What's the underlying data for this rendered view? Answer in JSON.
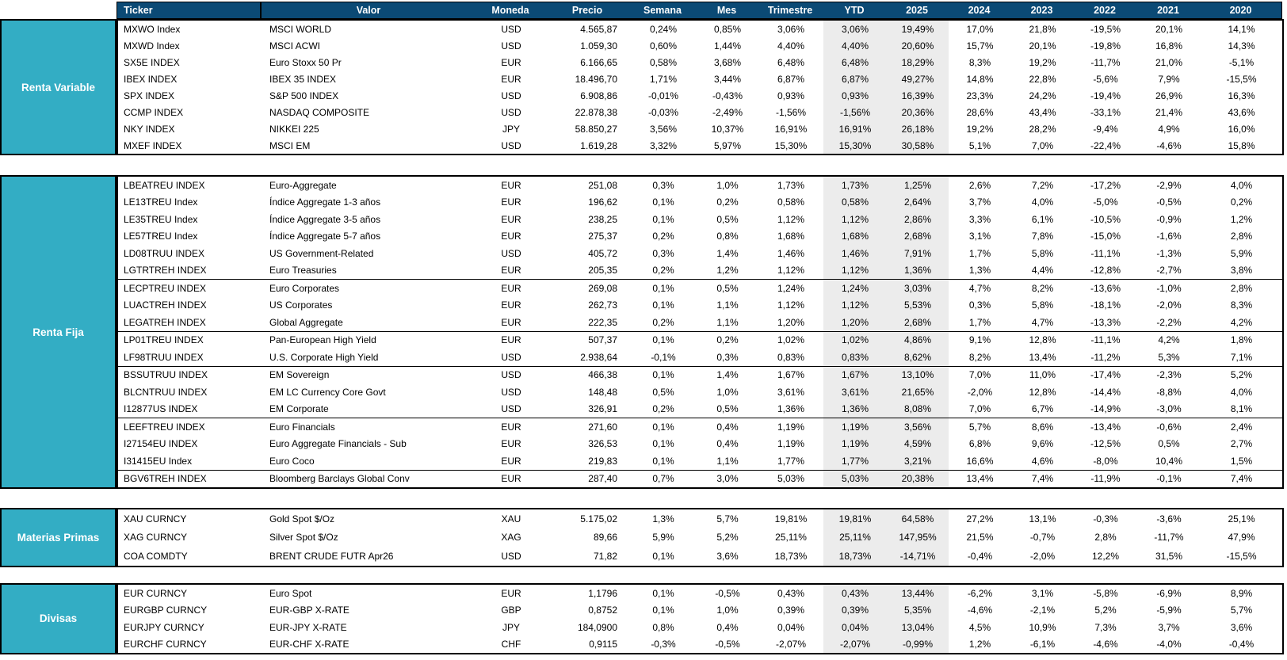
{
  "header": {
    "columns": [
      "Ticker",
      "Valor",
      "Moneda",
      "Precio",
      "Semana",
      "Mes",
      "Trimestre",
      "YTD",
      "2025",
      "2024",
      "2023",
      "2022",
      "2021",
      "2020"
    ]
  },
  "shaded_column_indices": [
    7,
    8
  ],
  "colors": {
    "header_bg": "#0b4a75",
    "header_text": "#ffffff",
    "section_label_bg": "#33adc4",
    "section_label_text": "#ffffff",
    "shaded_column_bg": "#ececec",
    "border": "#000000"
  },
  "sections": [
    {
      "label": "Renta Variable",
      "groups": [
        [
          [
            "MXWO Index",
            "MSCI WORLD",
            "USD",
            "4.565,87",
            "0,24%",
            "0,85%",
            "3,06%",
            "3,06%",
            "19,49%",
            "17,0%",
            "21,8%",
            "-19,5%",
            "20,1%",
            "14,1%"
          ],
          [
            "MXWD Index",
            "MSCI ACWI",
            "USD",
            "1.059,30",
            "0,60%",
            "1,44%",
            "4,40%",
            "4,40%",
            "20,60%",
            "15,7%",
            "20,1%",
            "-19,8%",
            "16,8%",
            "14,3%"
          ],
          [
            "SX5E INDEX",
            "Euro Stoxx 50 Pr",
            "EUR",
            "6.166,65",
            "0,58%",
            "3,68%",
            "6,48%",
            "6,48%",
            "18,29%",
            "8,3%",
            "19,2%",
            "-11,7%",
            "21,0%",
            "-5,1%"
          ],
          [
            "IBEX INDEX",
            "IBEX 35 INDEX",
            "EUR",
            "18.496,70",
            "1,71%",
            "3,44%",
            "6,87%",
            "6,87%",
            "49,27%",
            "14,8%",
            "22,8%",
            "-5,6%",
            "7,9%",
            "-15,5%"
          ],
          [
            "SPX INDEX",
            "S&P 500 INDEX",
            "USD",
            "6.908,86",
            "-0,01%",
            "-0,43%",
            "0,93%",
            "0,93%",
            "16,39%",
            "23,3%",
            "24,2%",
            "-19,4%",
            "26,9%",
            "16,3%"
          ],
          [
            "CCMP INDEX",
            "NASDAQ COMPOSITE",
            "USD",
            "22.878,38",
            "-0,03%",
            "-2,49%",
            "-1,56%",
            "-1,56%",
            "20,36%",
            "28,6%",
            "43,4%",
            "-33,1%",
            "21,4%",
            "43,6%"
          ],
          [
            "NKY INDEX",
            "NIKKEI 225",
            "JPY",
            "58.850,27",
            "3,56%",
            "10,37%",
            "16,91%",
            "16,91%",
            "26,18%",
            "19,2%",
            "28,2%",
            "-9,4%",
            "4,9%",
            "16,0%"
          ],
          [
            "MXEF INDEX",
            "MSCI EM",
            "USD",
            "1.619,28",
            "3,32%",
            "5,97%",
            "15,30%",
            "15,30%",
            "30,58%",
            "5,1%",
            "7,0%",
            "-22,4%",
            "-4,6%",
            "15,8%"
          ]
        ]
      ]
    },
    {
      "label": "Renta Fija",
      "groups": [
        [
          [
            "LBEATREU INDEX",
            "Euro-Aggregate",
            "EUR",
            "251,08",
            "0,3%",
            "1,0%",
            "1,73%",
            "1,73%",
            "1,25%",
            "2,6%",
            "7,2%",
            "-17,2%",
            "-2,9%",
            "4,0%"
          ],
          [
            "LE13TREU Index",
            "Índice Aggregate 1-3 años",
            "EUR",
            "196,62",
            "0,1%",
            "0,2%",
            "0,58%",
            "0,58%",
            "2,64%",
            "3,7%",
            "4,0%",
            "-5,0%",
            "-0,5%",
            "0,2%"
          ],
          [
            "LE35TREU Index",
            "Índice Aggregate 3-5 años",
            "EUR",
            "238,25",
            "0,1%",
            "0,5%",
            "1,12%",
            "1,12%",
            "2,86%",
            "3,3%",
            "6,1%",
            "-10,5%",
            "-0,9%",
            "1,2%"
          ],
          [
            "LE57TREU Index",
            "Índice Aggregate 5-7 años",
            "EUR",
            "275,37",
            "0,2%",
            "0,8%",
            "1,68%",
            "1,68%",
            "2,68%",
            "3,1%",
            "7,8%",
            "-15,0%",
            "-1,6%",
            "2,8%"
          ],
          [
            "LD08TRUU INDEX",
            "US Government-Related",
            "USD",
            "405,72",
            "0,3%",
            "1,4%",
            "1,46%",
            "1,46%",
            "7,91%",
            "1,7%",
            "5,8%",
            "-11,1%",
            "-1,3%",
            "5,9%"
          ],
          [
            "LGTRTREH INDEX",
            "Euro Treasuries",
            "EUR",
            "205,35",
            "0,2%",
            "1,2%",
            "1,12%",
            "1,12%",
            "1,36%",
            "1,3%",
            "4,4%",
            "-12,8%",
            "-2,7%",
            "3,8%"
          ]
        ],
        [
          [
            "LECPTREU INDEX",
            "Euro Corporates",
            "EUR",
            "269,08",
            "0,1%",
            "0,5%",
            "1,24%",
            "1,24%",
            "3,03%",
            "4,7%",
            "8,2%",
            "-13,6%",
            "-1,0%",
            "2,8%"
          ],
          [
            "LUACTREH INDEX",
            "US Corporates",
            "EUR",
            "262,73",
            "0,1%",
            "1,1%",
            "1,12%",
            "1,12%",
            "5,53%",
            "0,3%",
            "5,8%",
            "-18,1%",
            "-2,0%",
            "8,3%"
          ],
          [
            "LEGATREH INDEX",
            "Global Aggregate",
            "EUR",
            "222,35",
            "0,2%",
            "1,1%",
            "1,20%",
            "1,20%",
            "2,68%",
            "1,7%",
            "4,7%",
            "-13,3%",
            "-2,2%",
            "4,2%"
          ]
        ],
        [
          [
            "LP01TREU INDEX",
            "Pan-European High Yield",
            "EUR",
            "507,37",
            "0,1%",
            "0,2%",
            "1,02%",
            "1,02%",
            "4,86%",
            "9,1%",
            "12,8%",
            "-11,1%",
            "4,2%",
            "1,8%"
          ],
          [
            "LF98TRUU INDEX",
            "U.S. Corporate High Yield",
            "USD",
            "2.938,64",
            "-0,1%",
            "0,3%",
            "0,83%",
            "0,83%",
            "8,62%",
            "8,2%",
            "13,4%",
            "-11,2%",
            "5,3%",
            "7,1%"
          ]
        ],
        [
          [
            "BSSUTRUU INDEX",
            "EM Sovereign",
            "USD",
            "466,38",
            "0,1%",
            "1,4%",
            "1,67%",
            "1,67%",
            "13,10%",
            "7,0%",
            "11,0%",
            "-17,4%",
            "-2,3%",
            "5,2%"
          ],
          [
            "BLCNTRUU INDEX",
            "EM LC Currency Core Govt",
            "USD",
            "148,48",
            "0,5%",
            "1,0%",
            "3,61%",
            "3,61%",
            "21,65%",
            "-2,0%",
            "12,8%",
            "-14,4%",
            "-8,8%",
            "4,0%"
          ],
          [
            "I12877US INDEX",
            "EM Corporate",
            "USD",
            "326,91",
            "0,2%",
            "0,5%",
            "1,36%",
            "1,36%",
            "8,08%",
            "7,0%",
            "6,7%",
            "-14,9%",
            "-3,0%",
            "8,1%"
          ]
        ],
        [
          [
            "LEEFTREU INDEX",
            "Euro Financials",
            "EUR",
            "271,60",
            "0,1%",
            "0,4%",
            "1,19%",
            "1,19%",
            "3,56%",
            "5,7%",
            "8,6%",
            "-13,4%",
            "-0,6%",
            "2,4%"
          ],
          [
            "I27154EU INDEX",
            "Euro Aggregate Financials - Sub",
            "EUR",
            "326,53",
            "0,1%",
            "0,4%",
            "1,19%",
            "1,19%",
            "4,59%",
            "6,8%",
            "9,6%",
            "-12,5%",
            "0,5%",
            "2,7%"
          ],
          [
            "I31415EU Index",
            "Euro Coco",
            "EUR",
            "219,83",
            "0,1%",
            "1,1%",
            "1,77%",
            "1,77%",
            "3,21%",
            "16,6%",
            "4,6%",
            "-8,0%",
            "10,4%",
            "1,5%"
          ]
        ],
        [
          [
            "BGV6TREH INDEX",
            "Bloomberg Barclays Global Conv",
            "EUR",
            "287,40",
            "0,7%",
            "3,0%",
            "5,03%",
            "5,03%",
            "20,38%",
            "13,4%",
            "7,4%",
            "-11,9%",
            "-0,1%",
            "7,4%"
          ]
        ]
      ]
    },
    {
      "label": "Materias Primas",
      "groups": [
        [
          [
            "XAU CURNCY",
            "Gold Spot  $/Oz",
            "XAU",
            "5.175,02",
            "1,3%",
            "5,7%",
            "19,81%",
            "19,81%",
            "64,58%",
            "27,2%",
            "13,1%",
            "-0,3%",
            "-3,6%",
            "25,1%"
          ],
          [
            "XAG CURNCY",
            "Silver Spot  $/Oz",
            "XAG",
            "89,66",
            "5,9%",
            "5,2%",
            "25,11%",
            "25,11%",
            "147,95%",
            "21,5%",
            "-0,7%",
            "2,8%",
            "-11,7%",
            "47,9%"
          ],
          [
            "COA COMDTY",
            "BRENT CRUDE FUTR  Apr26",
            "USD",
            "71,82",
            "0,1%",
            "3,6%",
            "18,73%",
            "18,73%",
            "-14,71%",
            "-0,4%",
            "-2,0%",
            "12,2%",
            "31,5%",
            "-15,5%"
          ]
        ]
      ]
    },
    {
      "label": "Divisas",
      "groups": [
        [
          [
            "EUR CURNCY",
            "Euro Spot",
            "EUR",
            "1,1796",
            "0,1%",
            "-0,5%",
            "0,43%",
            "0,43%",
            "13,44%",
            "-6,2%",
            "3,1%",
            "-5,8%",
            "-6,9%",
            "8,9%"
          ],
          [
            "EURGBP CURNCY",
            "EUR-GBP X-RATE",
            "GBP",
            "0,8752",
            "0,1%",
            "1,0%",
            "0,39%",
            "0,39%",
            "5,35%",
            "-4,6%",
            "-2,1%",
            "5,2%",
            "-5,9%",
            "5,7%"
          ],
          [
            "EURJPY CURNCY",
            "EUR-JPY X-RATE",
            "JPY",
            "184,0900",
            "0,8%",
            "0,4%",
            "0,04%",
            "0,04%",
            "13,04%",
            "4,5%",
            "10,9%",
            "7,3%",
            "3,7%",
            "3,6%"
          ],
          [
            "EURCHF CURNCY",
            "EUR-CHF X-RATE",
            "CHF",
            "0,9115",
            "-0,3%",
            "-0,5%",
            "-2,07%",
            "-2,07%",
            "-0,99%",
            "1,2%",
            "-6,1%",
            "-4,6%",
            "-4,0%",
            "-0,4%"
          ]
        ]
      ]
    }
  ]
}
